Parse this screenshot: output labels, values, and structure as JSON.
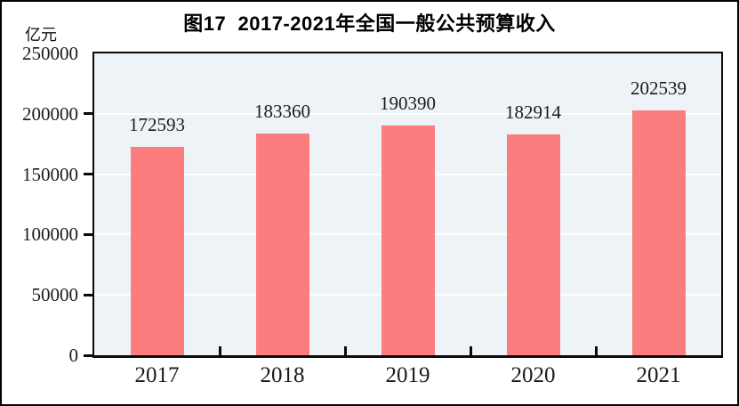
{
  "figure": {
    "title": "图17  2017-2021年全国一般公共预算收入",
    "unit_label": "亿元"
  },
  "chart_data": {
    "type": "bar",
    "title": "图17  2017-2021年全国一般公共预算收入",
    "ylabel": "亿元",
    "xlabel": "",
    "categories": [
      "2017",
      "2018",
      "2019",
      "2020",
      "2021"
    ],
    "values": [
      172593,
      183360,
      190390,
      182914,
      202539
    ],
    "value_labels": [
      "172593",
      "183360",
      "190390",
      "182914",
      "202539"
    ],
    "ylim": [
      0,
      250000
    ],
    "yticks": [
      0,
      50000,
      100000,
      150000,
      200000,
      250000
    ],
    "ytick_labels": [
      "0",
      "50000",
      "100000",
      "150000",
      "200000",
      "250000"
    ],
    "grid": true,
    "legend_position": "none",
    "colors": {
      "bar": "#FB7D7D",
      "plot_background": "#EDF3F6",
      "gridline": "#FFFFFF",
      "axis": "#0A0A0A",
      "text": "#1B1B1B",
      "title_text": "#000000",
      "outer_background": "#FFFFFF"
    }
  }
}
